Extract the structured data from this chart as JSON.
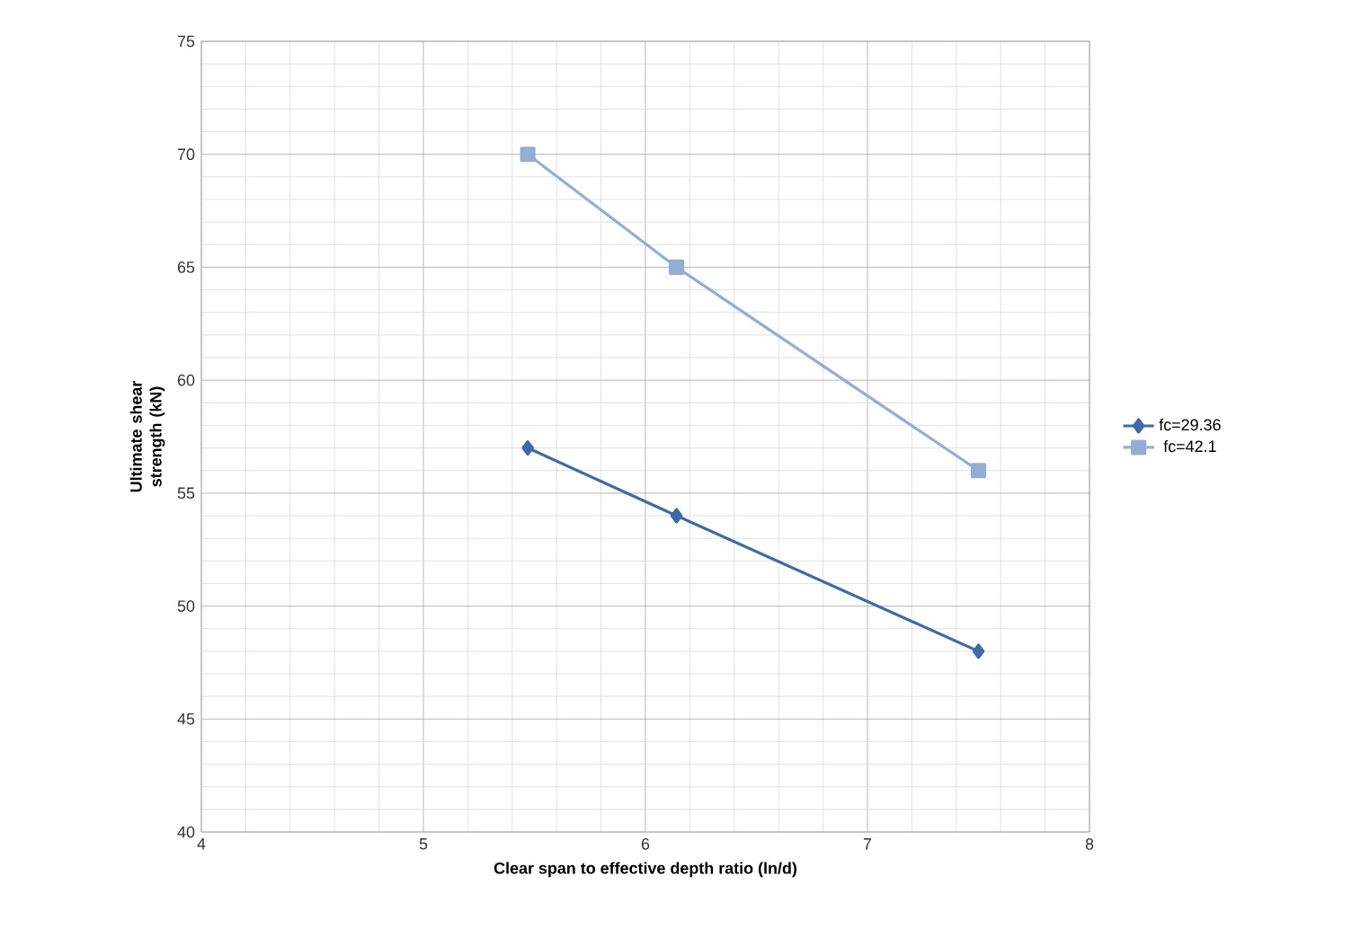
{
  "chart_data": {
    "type": "line",
    "xlabel": "Clear span to effective depth ratio (ln/d)",
    "ylabel": "Ultimate shear strength (kN)",
    "series": [
      {
        "name": "fc=29.36",
        "color": "#3e6aa8",
        "marker": "diamond",
        "x": [
          5.47,
          6.14,
          7.5
        ],
        "values": [
          57,
          54,
          48
        ]
      },
      {
        "name": "fc=42.1",
        "color": "#94aed3",
        "marker": "square",
        "x": [
          5.47,
          6.14,
          7.5
        ],
        "values": [
          70,
          65,
          56
        ]
      }
    ],
    "xlim": [
      4,
      8
    ],
    "xticks": [
      4,
      5,
      6,
      7,
      8
    ],
    "ylim": [
      40,
      75
    ],
    "yticks": [
      40,
      45,
      50,
      55,
      60,
      65,
      70,
      75
    ],
    "grid": true,
    "legend": "right",
    "line_style": "solid"
  }
}
